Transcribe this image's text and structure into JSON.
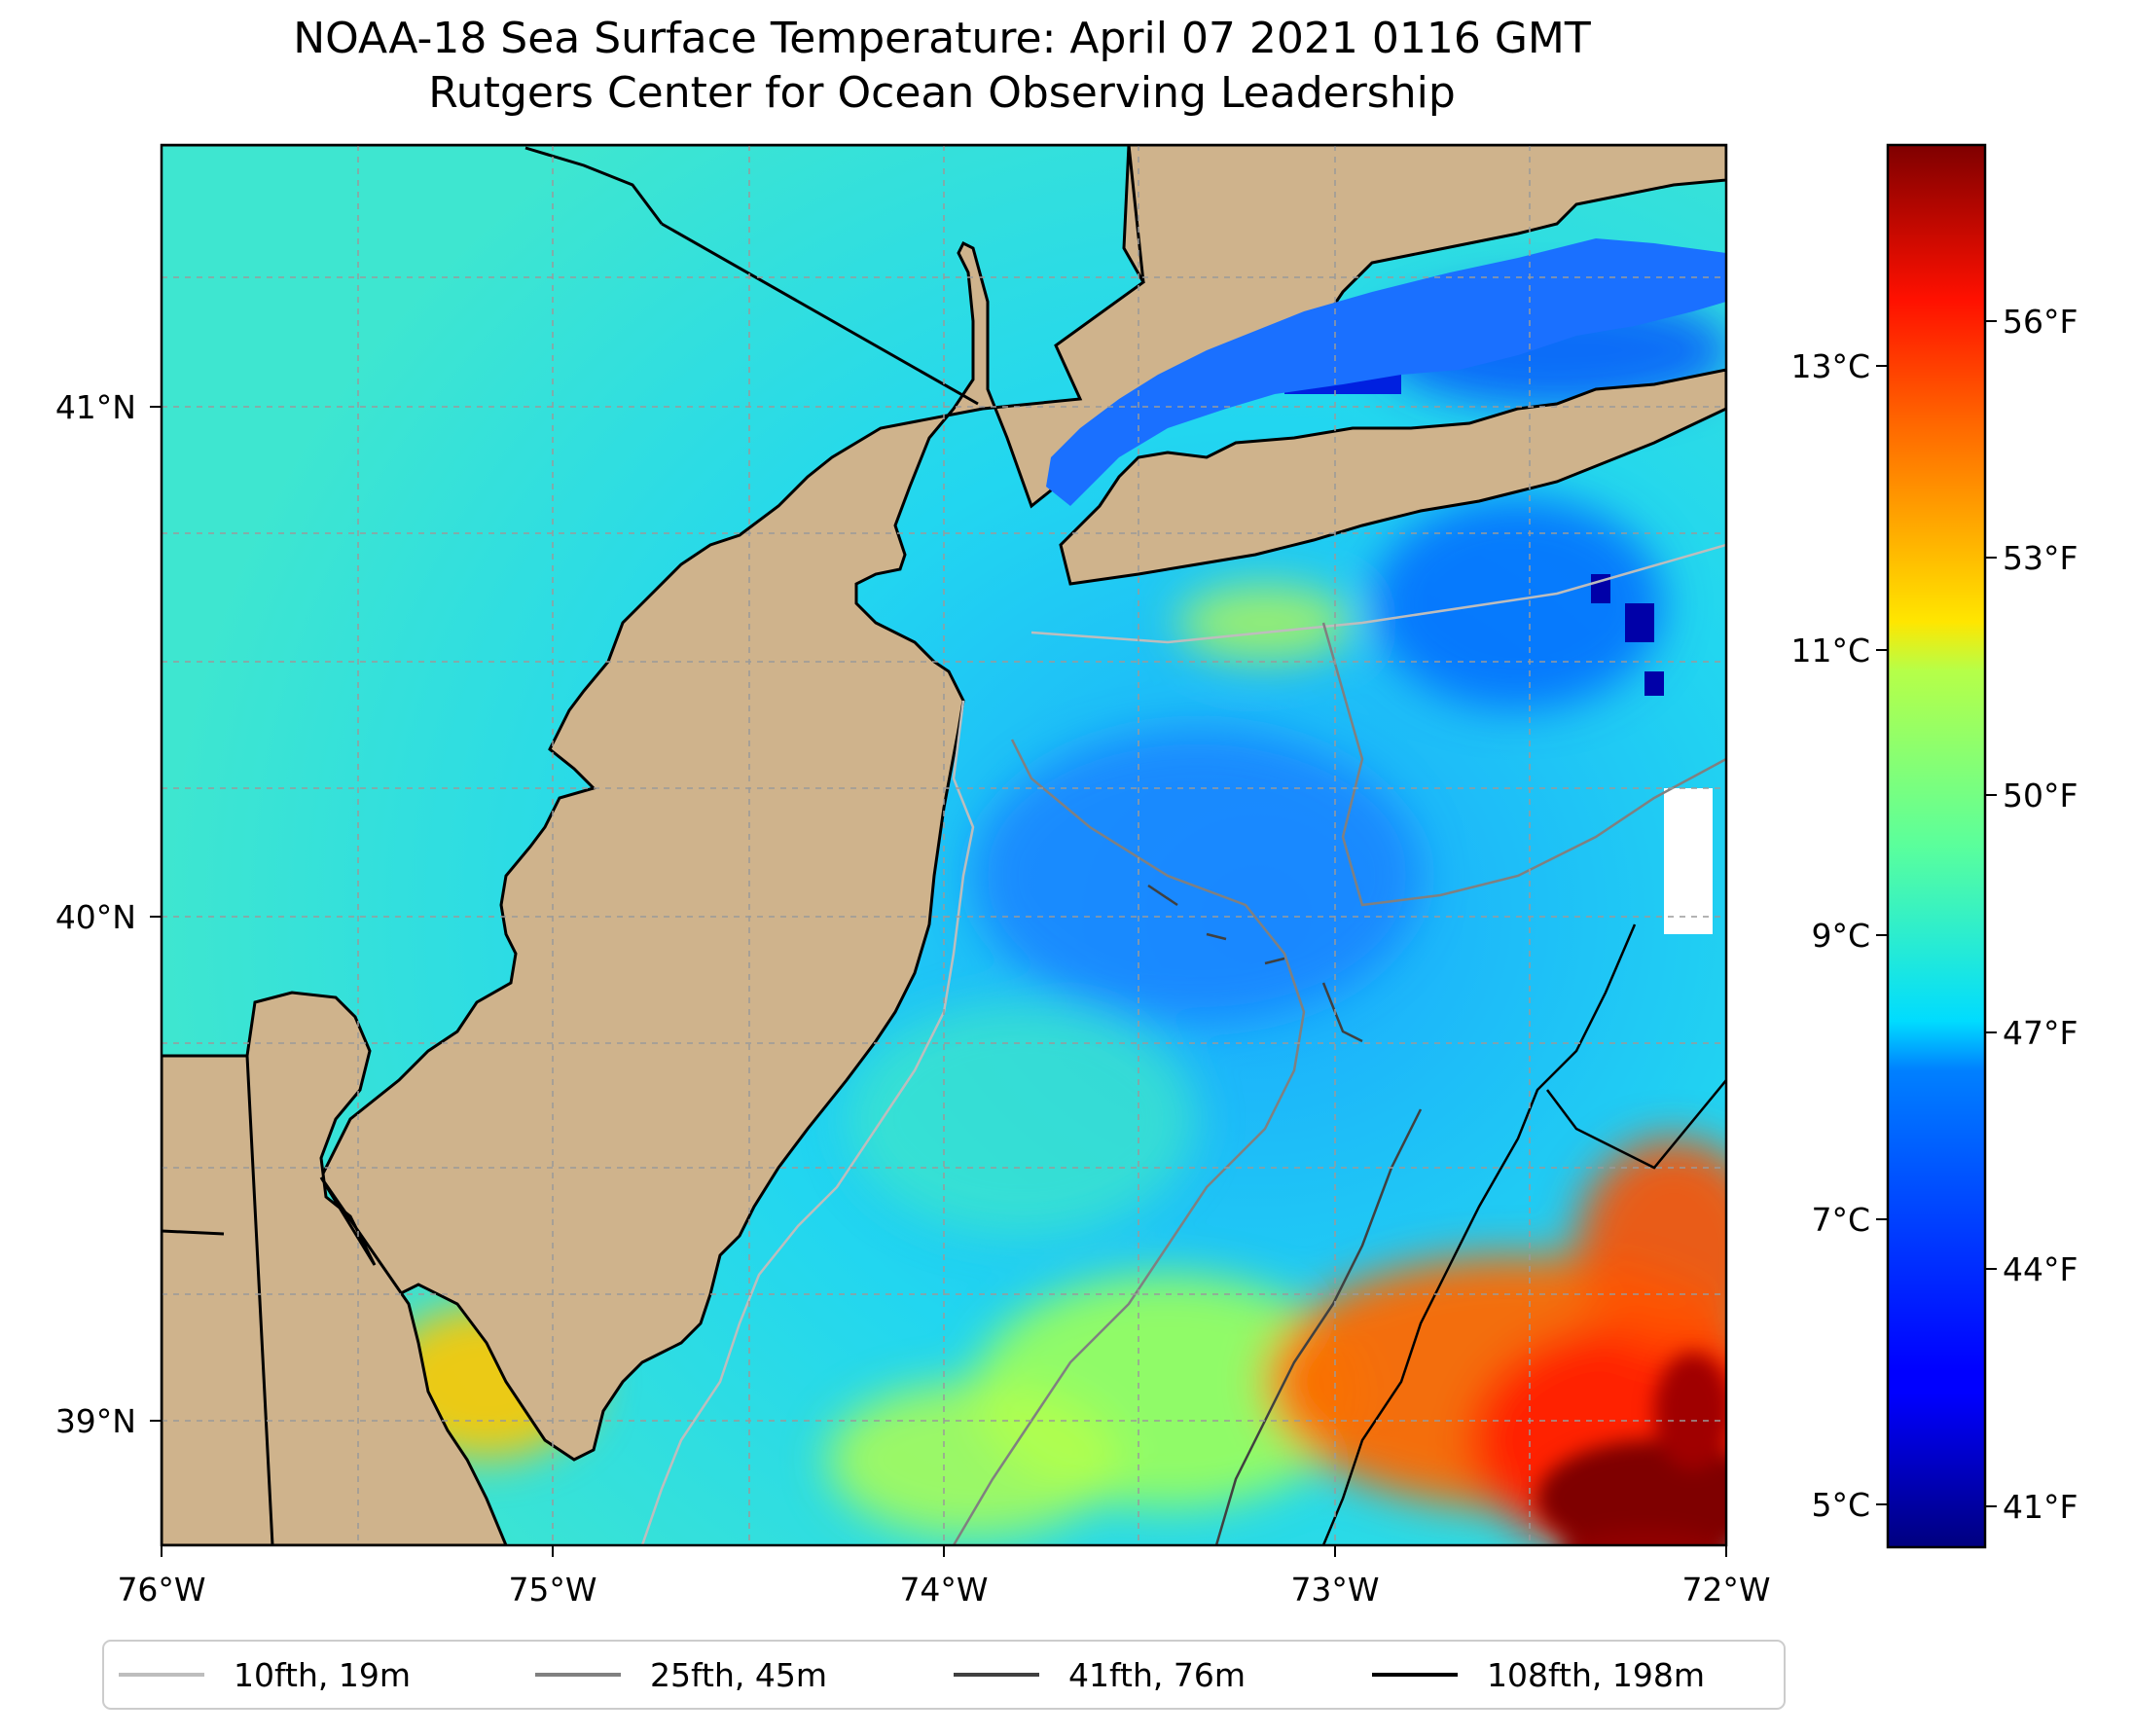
{
  "title": {
    "line1": "NOAA-18 Sea Surface Temperature: April 07 2021 0116 GMT",
    "line2": "Rutgers Center for Ocean Observing Leadership"
  },
  "map": {
    "lon_range": [
      -76,
      -72
    ],
    "lat_range": [
      38.85,
      41.52
    ],
    "lon_ticks": [
      "76°W",
      "75°W",
      "74°W",
      "73°W",
      "72°W"
    ],
    "lat_ticks": [
      "41°N",
      "40°N",
      "39°N"
    ],
    "grid": true,
    "land_color": "#cfb38c",
    "colormap": "jet"
  },
  "colorbar": {
    "celsius_ticks": [
      "13°C",
      "11°C",
      "9°C",
      "7°C",
      "5°C"
    ],
    "fahrenheit_ticks": [
      "56°F",
      "53°F",
      "50°F",
      "47°F",
      "44°F",
      "41°F"
    ]
  },
  "legend": {
    "placement": "bottom",
    "items": [
      {
        "label": "10fth, 19m",
        "color": "#bdbdbd"
      },
      {
        "label": "25fth, 45m",
        "color": "#808080"
      },
      {
        "label": "41fth, 76m",
        "color": "#404040"
      },
      {
        "label": "108fth, 198m",
        "color": "#000000"
      }
    ]
  }
}
